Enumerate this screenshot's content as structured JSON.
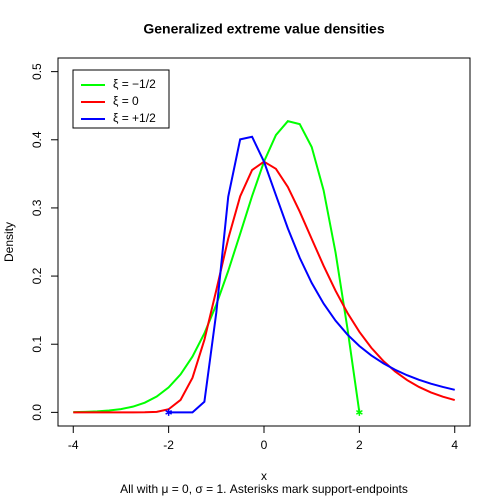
{
  "chart_data": {
    "type": "line",
    "title": "Generalized extreme value densities",
    "x_label": "x",
    "y_label": "Density",
    "subtitle": "All with μ = 0, σ = 1. Asterisks mark support-endpoints",
    "x": [
      -4,
      -3.75,
      -3.5,
      -3.25,
      -3,
      -2.75,
      -2.5,
      -2.25,
      -2,
      -1.75,
      -1.5,
      -1.25,
      -1,
      -0.75,
      -0.5,
      -0.25,
      0,
      0.25,
      0.5,
      0.75,
      1,
      1.25,
      1.5,
      1.75,
      2,
      2.25,
      2.5,
      2.75,
      3,
      3.25,
      3.5,
      3.75,
      4
    ],
    "series": [
      {
        "name": "ξ = −1/2",
        "color": "#00ff00",
        "values": [
          0.0004,
          0.0007,
          0.0014,
          0.0027,
          0.0048,
          0.0084,
          0.0142,
          0.0232,
          0.0366,
          0.0557,
          0.0819,
          0.1159,
          0.1581,
          0.2076,
          0.262,
          0.3174,
          0.3679,
          0.4069,
          0.4273,
          0.4229,
          0.3894,
          0.3258,
          0.2348,
          0.1231,
          0,
          null,
          null,
          null,
          null,
          null,
          null,
          null,
          null
        ]
      },
      {
        "name": "ξ = 0",
        "color": "#ff0000",
        "values": [
          0,
          0,
          0,
          0,
          0,
          0,
          0.0001,
          0.0007,
          0.0046,
          0.0182,
          0.0507,
          0.1064,
          0.1794,
          0.2549,
          0.317,
          0.3556,
          0.3679,
          0.3574,
          0.3307,
          0.2945,
          0.2546,
          0.2151,
          0.1785,
          0.146,
          0.1182,
          0.0948,
          0.0756,
          0.06,
          0.0474,
          0.0373,
          0.0293,
          0.023,
          0.018
        ]
      },
      {
        "name": "ξ = +1/2",
        "color": "#0000ff",
        "values": [
          null,
          null,
          null,
          null,
          null,
          null,
          null,
          null,
          0,
          0,
          0,
          0.0155,
          0.1465,
          0.3166,
          0.4006,
          0.4044,
          0.3679,
          0.3187,
          0.27,
          0.2267,
          0.19,
          0.1596,
          0.1346,
          0.1142,
          0.0974,
          0.0835,
          0.0721,
          0.0625,
          0.0545,
          0.0478,
          0.0421,
          0.0373,
          0.0331
        ]
      }
    ],
    "endpoints": [
      {
        "x": -2,
        "y": 0,
        "color": "#0000ff"
      },
      {
        "x": 2,
        "y": 0,
        "color": "#00ff00"
      }
    ],
    "xlim": [
      -4.32,
      4.32
    ],
    "ylim": [
      -0.02,
      0.52
    ],
    "xticks": [
      -4,
      -2,
      0,
      2,
      4
    ],
    "yticks": [
      {
        "value": 0,
        "label": "0.0"
      },
      0.1,
      0.2,
      0.3,
      0.4,
      0.5
    ],
    "legend": "top-left"
  }
}
